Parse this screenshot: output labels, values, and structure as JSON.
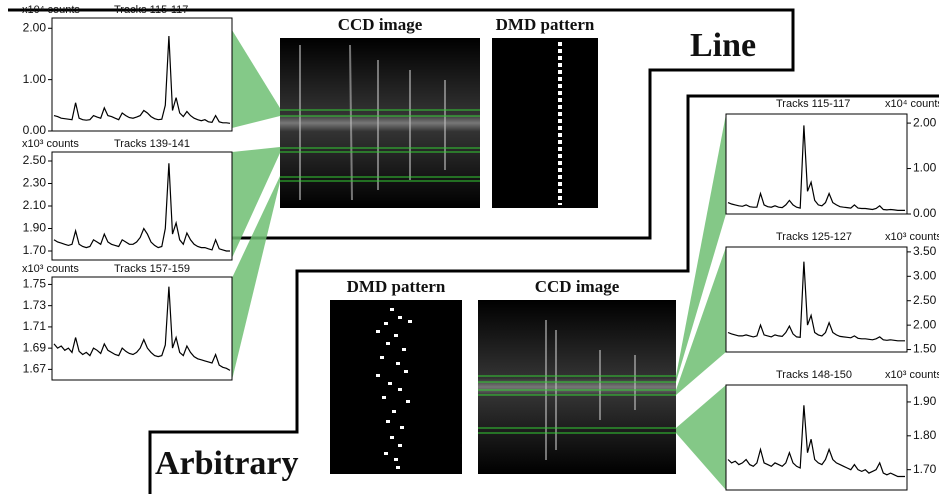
{
  "labels": {
    "line": "Line",
    "arbitrary": "Arbitrary",
    "ccd_line": "CCD image",
    "dmd_line": "DMD pattern",
    "dmd_arbitrary": "DMD pattern",
    "ccd_arbitrary": "CCD image"
  },
  "chart_data": [
    {
      "type": "line",
      "title": "Tracks 115-117",
      "y_label": "x10⁴ counts",
      "color": "#000000",
      "values": [
        0.3,
        0.28,
        0.25,
        0.24,
        0.23,
        0.22,
        0.55,
        0.25,
        0.22,
        0.21,
        0.22,
        0.3,
        0.27,
        0.25,
        0.45,
        0.3,
        0.28,
        0.25,
        0.22,
        0.35,
        0.3,
        0.26,
        0.25,
        0.27,
        0.3,
        0.4,
        0.35,
        0.28,
        0.24,
        0.22,
        0.23,
        0.5,
        1.85,
        0.4,
        0.65,
        0.35,
        0.28,
        0.38,
        0.3,
        0.25,
        0.22,
        0.2,
        0.22,
        0.18,
        0.17,
        0.3,
        0.18,
        0.16,
        0.16,
        0.15
      ],
      "ylim": [
        0,
        2.2
      ],
      "yticks": [
        {
          "value": 0,
          "label": "0.00"
        },
        {
          "value": 1,
          "label": "1.00"
        },
        {
          "value": 2,
          "label": "2.00"
        }
      ]
    },
    {
      "type": "line",
      "title": "Tracks 139-141",
      "y_label": "x10³ counts",
      "color": "#000000",
      "values": [
        1.8,
        1.78,
        1.77,
        1.76,
        1.75,
        1.76,
        1.88,
        1.76,
        1.74,
        1.73,
        1.74,
        1.8,
        1.78,
        1.76,
        1.85,
        1.78,
        1.76,
        1.75,
        1.74,
        1.8,
        1.78,
        1.76,
        1.76,
        1.78,
        1.82,
        1.9,
        1.85,
        1.78,
        1.75,
        1.73,
        1.74,
        1.9,
        2.48,
        1.85,
        1.95,
        1.8,
        1.76,
        1.86,
        1.8,
        1.76,
        1.74,
        1.73,
        1.73,
        1.72,
        1.71,
        1.8,
        1.72,
        1.71,
        1.7,
        1.7
      ],
      "ylim": [
        1.62,
        2.58
      ],
      "yticks": [
        {
          "value": 1.7,
          "label": "1.70"
        },
        {
          "value": 1.9,
          "label": "1.90"
        },
        {
          "value": 2.1,
          "label": "2.10"
        },
        {
          "value": 2.3,
          "label": "2.30"
        },
        {
          "value": 2.5,
          "label": "2.50"
        }
      ]
    },
    {
      "type": "line",
      "title": "Tracks 157-159",
      "y_label": "x10³ counts",
      "color": "#000000",
      "values": [
        1.694,
        1.69,
        1.692,
        1.688,
        1.69,
        1.686,
        1.7,
        1.687,
        1.684,
        1.686,
        1.683,
        1.69,
        1.688,
        1.685,
        1.694,
        1.688,
        1.686,
        1.684,
        1.683,
        1.69,
        1.687,
        1.685,
        1.684,
        1.686,
        1.69,
        1.698,
        1.69,
        1.686,
        1.683,
        1.682,
        1.683,
        1.693,
        1.748,
        1.69,
        1.7,
        1.686,
        1.683,
        1.692,
        1.686,
        1.682,
        1.68,
        1.679,
        1.678,
        1.677,
        1.676,
        1.684,
        1.674,
        1.672,
        1.671,
        1.669
      ],
      "ylim": [
        1.66,
        1.757
      ],
      "yticks": [
        1.67,
        1.69,
        1.71,
        1.73,
        1.75
      ]
    },
    {
      "type": "line",
      "title": "Tracks 115-117",
      "y_label": "x10⁴ counts",
      "color": "#000000",
      "values": [
        0.25,
        0.22,
        0.2,
        0.18,
        0.17,
        0.2,
        0.16,
        0.15,
        0.15,
        0.45,
        0.2,
        0.16,
        0.15,
        0.18,
        0.15,
        0.14,
        0.2,
        0.3,
        0.2,
        0.15,
        0.13,
        1.95,
        0.5,
        0.7,
        0.3,
        0.2,
        0.18,
        0.25,
        0.45,
        0.25,
        0.2,
        0.16,
        0.15,
        0.14,
        0.13,
        0.2,
        0.13,
        0.12,
        0.12,
        0.11,
        0.1,
        0.12,
        0.18,
        0.1,
        0.09,
        0.1,
        0.09,
        0.08,
        0.08,
        0.08
      ],
      "ylim": [
        0,
        2.2
      ],
      "yticks": [
        {
          "value": 0,
          "label": "0.00"
        },
        {
          "value": 1,
          "label": "1.00"
        },
        {
          "value": 2,
          "label": "2.00"
        }
      ]
    },
    {
      "type": "line",
      "title": "Tracks 125-127",
      "y_label": "x10³ counts",
      "color": "#000000",
      "values": [
        1.85,
        1.82,
        1.8,
        1.78,
        1.78,
        1.8,
        1.78,
        1.76,
        1.78,
        2.0,
        1.8,
        1.78,
        1.76,
        1.8,
        1.78,
        1.77,
        1.85,
        1.98,
        1.82,
        1.76,
        1.75,
        3.3,
        2.0,
        2.2,
        1.85,
        1.8,
        1.78,
        1.85,
        2.05,
        1.85,
        1.8,
        1.77,
        1.76,
        1.75,
        1.74,
        1.78,
        1.73,
        1.72,
        1.72,
        1.71,
        1.7,
        1.72,
        1.76,
        1.7,
        1.69,
        1.7,
        1.69,
        1.68,
        1.68,
        1.68
      ],
      "ylim": [
        1.45,
        3.6
      ],
      "yticks": [
        {
          "value": 1.5,
          "label": "1.50"
        },
        {
          "value": 2,
          "label": "2.00"
        },
        {
          "value": 2.5,
          "label": "2.50"
        },
        {
          "value": 3,
          "label": "3.00"
        },
        {
          "value": 3.5,
          "label": "3.50"
        }
      ]
    },
    {
      "type": "line",
      "title": "Tracks 148-150",
      "y_label": "x10³ counts",
      "color": "#000000",
      "values": [
        1.73,
        1.72,
        1.725,
        1.715,
        1.72,
        1.73,
        1.715,
        1.71,
        1.72,
        1.76,
        1.72,
        1.715,
        1.71,
        1.72,
        1.715,
        1.71,
        1.72,
        1.75,
        1.72,
        1.71,
        1.705,
        1.89,
        1.75,
        1.79,
        1.73,
        1.72,
        1.715,
        1.73,
        1.76,
        1.73,
        1.72,
        1.715,
        1.71,
        1.705,
        1.7,
        1.715,
        1.7,
        1.695,
        1.7,
        1.69,
        1.695,
        1.7,
        1.72,
        1.69,
        1.685,
        1.69,
        1.685,
        1.68,
        1.68,
        1.68
      ],
      "ylim": [
        1.64,
        1.95
      ],
      "yticks": [
        {
          "value": 1.7,
          "label": "1.70"
        },
        {
          "value": 1.8,
          "label": "1.80"
        },
        {
          "value": 1.9,
          "label": "1.90"
        }
      ]
    }
  ]
}
